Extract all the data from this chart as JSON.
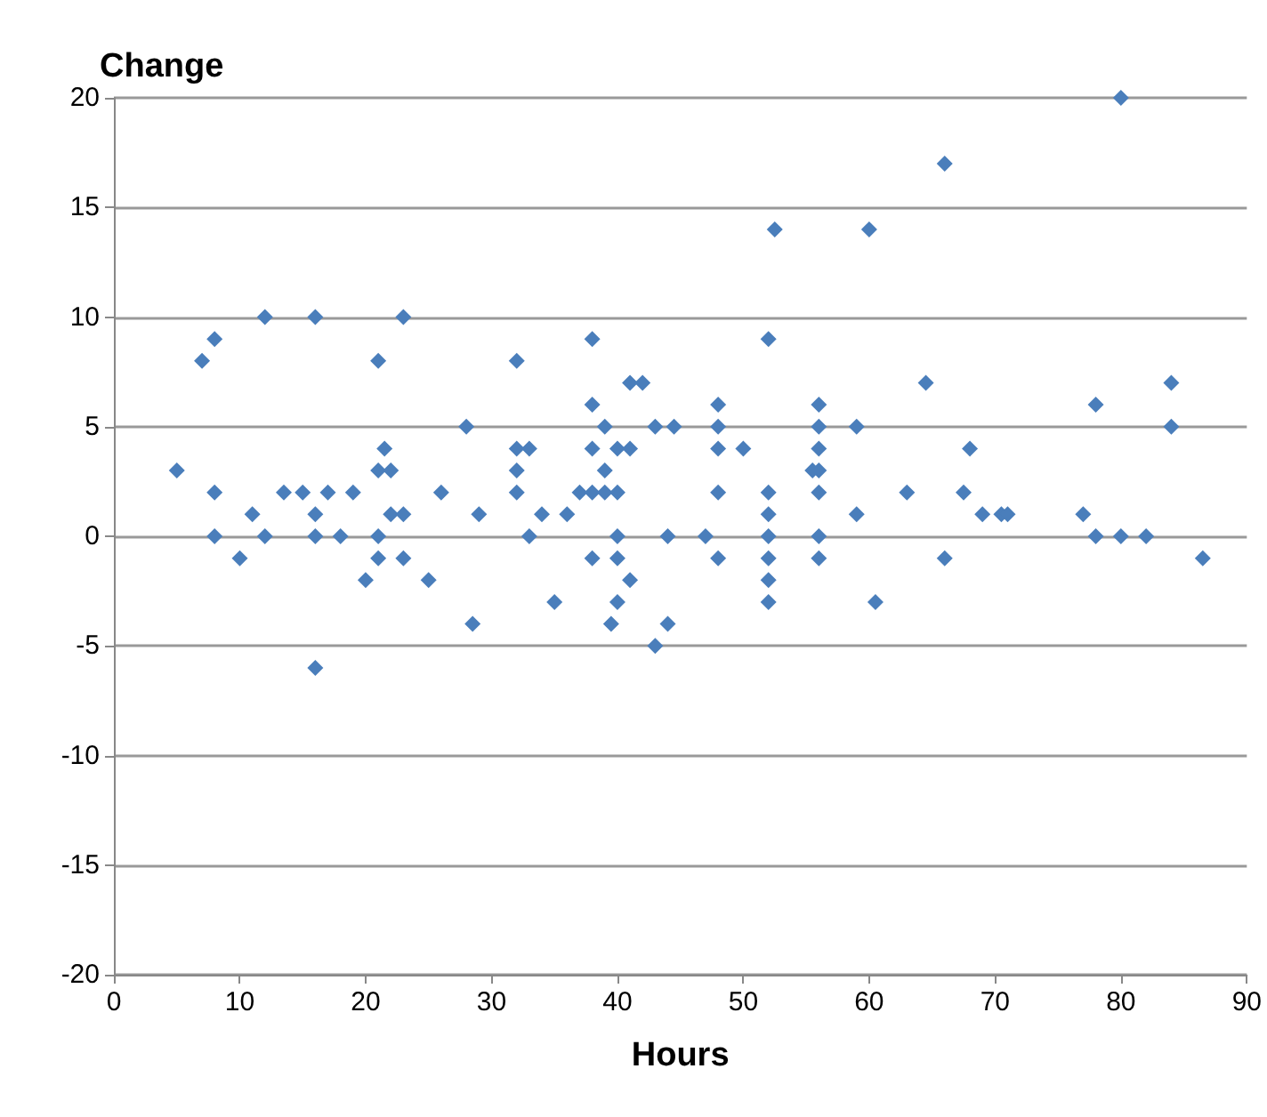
{
  "chart_data": {
    "type": "scatter",
    "xlabel": "Hours",
    "ylabel": "Change",
    "color": "#4a7ebb",
    "marker": "diamond",
    "grid": "y",
    "x": [
      5,
      7,
      8,
      8,
      8,
      10,
      11,
      12,
      12,
      13.5,
      15,
      16,
      16,
      16,
      16,
      17,
      18,
      19,
      20,
      21,
      21,
      21,
      21,
      21.5,
      22,
      22,
      23,
      23,
      23,
      25,
      26,
      28,
      28.5,
      29,
      32,
      32,
      32,
      32,
      33,
      33,
      34,
      35,
      36,
      37,
      38,
      38,
      38,
      38,
      38,
      39,
      39,
      39,
      40,
      40,
      40,
      40,
      40,
      39.5,
      41,
      41,
      41,
      42,
      43,
      43,
      44,
      44,
      44.5,
      47,
      48,
      48,
      48,
      48,
      48,
      50,
      52,
      52,
      52,
      52,
      52,
      52,
      52,
      52.5,
      55.5,
      56,
      56,
      56,
      56,
      56,
      56,
      56,
      59,
      59,
      60,
      60.5,
      63,
      64.5,
      66,
      66,
      67.5,
      68,
      69,
      70.5,
      71,
      77,
      78,
      78,
      80,
      80,
      82,
      84,
      84,
      86.5
    ],
    "values": [
      3,
      8,
      9,
      2,
      0,
      -1,
      1,
      10,
      0,
      2,
      2,
      1,
      10,
      0,
      -6,
      2,
      0,
      2,
      -2,
      8,
      3,
      0,
      -1,
      4,
      1,
      3,
      10,
      1,
      -1,
      -2,
      2,
      5,
      -4,
      1,
      8,
      4,
      3,
      2,
      4,
      0,
      1,
      -3,
      1,
      2,
      9,
      6,
      4,
      2,
      -1,
      5,
      3,
      2,
      4,
      2,
      0,
      -1,
      -3,
      -4,
      7,
      4,
      -2,
      7,
      5,
      -5,
      0,
      -4,
      5,
      0,
      6,
      5,
      4,
      2,
      -1,
      4,
      9,
      2,
      1,
      0,
      -1,
      -2,
      -3,
      14,
      3,
      6,
      5,
      4,
      3,
      2,
      0,
      -1,
      5,
      1,
      14,
      -3,
      2,
      7,
      17,
      -1,
      2,
      4,
      1,
      1,
      1,
      1,
      6,
      0,
      20,
      0,
      0,
      7,
      5,
      -1
    ],
    "xlim": [
      0,
      90
    ],
    "xticks": [
      0,
      10,
      20,
      30,
      40,
      50,
      60,
      70,
      80,
      90
    ],
    "ylim": [
      -20,
      20
    ],
    "yticks": [
      -20,
      -15,
      -10,
      -5,
      0,
      5,
      10,
      15,
      20
    ]
  }
}
